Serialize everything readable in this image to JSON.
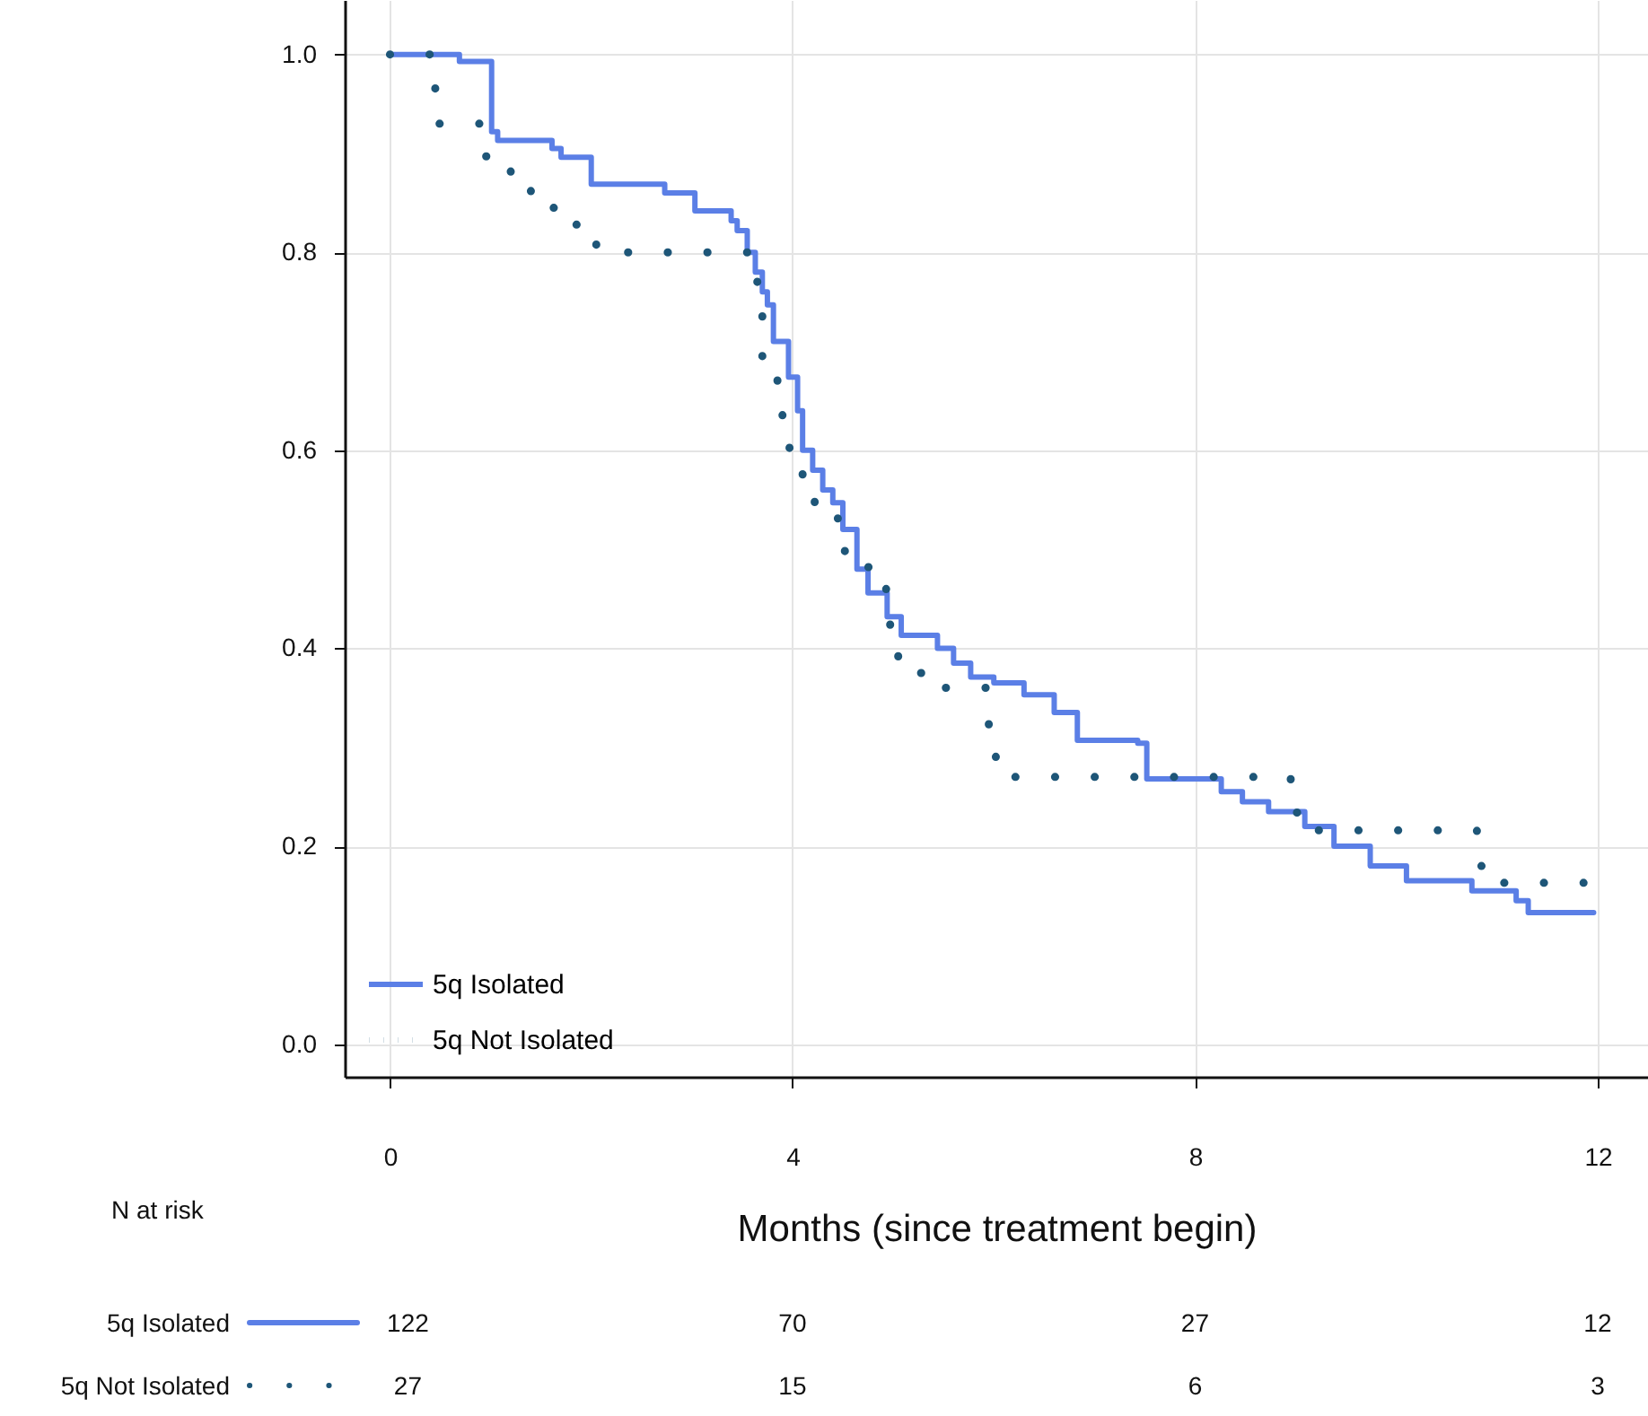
{
  "chart_data": {
    "type": "step",
    "xlabel": "Months (since treatment begin)",
    "xlim": [
      -0.45,
      12.5
    ],
    "ylim": [
      -0.033,
      1.055
    ],
    "xticks": [
      0,
      4,
      8,
      12
    ],
    "yticks": [
      {
        "value": 0,
        "label": "0.0"
      },
      {
        "value": 0.2,
        "label": "0.2"
      },
      {
        "value": 0.4,
        "label": "0.4"
      },
      {
        "value": 0.6,
        "label": "0.6"
      },
      {
        "value": 0.8,
        "label": "0.8"
      },
      {
        "value": 1,
        "label": "1.0"
      }
    ],
    "grid": true,
    "legend": "bottom left",
    "series": [
      {
        "name": "5q Isolated",
        "color": "#5b7fe6",
        "line_style": "solid",
        "x": [
          0,
          0.69,
          1.01,
          1.07,
          1.61,
          1.7,
          2.0,
          2.73,
          3.03,
          3.39,
          3.45,
          3.55,
          3.63,
          3.7,
          3.75,
          3.81,
          3.96,
          4.05,
          4.1,
          4.2,
          4.3,
          4.4,
          4.5,
          4.64,
          4.75,
          4.94,
          5.08,
          5.44,
          5.6,
          5.77,
          6.0,
          6.3,
          6.6,
          6.83,
          7.43,
          7.52,
          8.26,
          8.47,
          8.73,
          9.09,
          9.38,
          9.74,
          10.1,
          10.75,
          11.19,
          11.31,
          11.96
        ],
        "values": [
          1.0,
          0.993,
          0.922,
          0.913,
          0.905,
          0.896,
          0.869,
          0.86,
          0.842,
          0.832,
          0.822,
          0.8,
          0.78,
          0.76,
          0.747,
          0.71,
          0.674,
          0.64,
          0.6,
          0.58,
          0.56,
          0.547,
          0.52,
          0.48,
          0.456,
          0.432,
          0.413,
          0.4,
          0.385,
          0.371,
          0.365,
          0.353,
          0.335,
          0.307,
          0.304,
          0.268,
          0.255,
          0.245,
          0.235,
          0.22,
          0.2,
          0.18,
          0.165,
          0.155,
          0.145,
          0.133,
          0.133
        ]
      },
      {
        "name": "5q Not Isolated",
        "color": "#1e5678",
        "line_style": "dotted",
        "x": [
          0,
          0.45,
          0.9,
          1.2,
          1.4,
          1.75,
          2.05,
          3.55,
          3.65,
          3.7,
          3.85,
          3.9,
          3.97,
          4.1,
          4.22,
          4.45,
          4.52,
          4.93,
          4.97,
          5.05,
          5.3,
          5.95,
          6.02,
          8.95,
          9.15,
          10.8,
          11.0,
          11.86
        ],
        "values": [
          1.0,
          0.93,
          0.897,
          0.87,
          0.845,
          0.828,
          0.8,
          0.79,
          0.76,
          0.685,
          0.66,
          0.627,
          0.592,
          0.562,
          0.536,
          0.517,
          0.482,
          0.444,
          0.406,
          0.375,
          0.36,
          0.3,
          0.27,
          0.234,
          0.216,
          0.18,
          0.163,
          0.163
        ]
      }
    ],
    "annotations": [
      "N at risk",
      "122",
      "70",
      "27",
      "12",
      "27",
      "15",
      "6",
      "3"
    ]
  }
}
